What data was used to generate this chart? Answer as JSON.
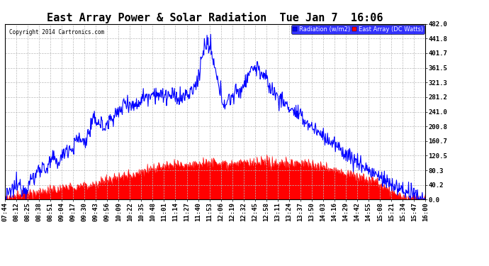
{
  "title": "East Array Power & Solar Radiation  Tue Jan 7  16:06",
  "copyright": "Copyright 2014 Cartronics.com",
  "legend_radiation": "Radiation (w/m2)",
  "legend_east_array": "East Array (DC Watts)",
  "ymax": 482.0,
  "ymin": 0.0,
  "yticks": [
    0.0,
    40.2,
    80.3,
    120.5,
    160.7,
    200.8,
    241.0,
    281.2,
    321.3,
    361.5,
    401.7,
    441.8,
    482.0
  ],
  "background_color": "#ffffff",
  "plot_bg_color": "#ffffff",
  "radiation_color": "#0000ff",
  "east_array_color": "#ff0000",
  "grid_color": "#bbbbbb",
  "title_fontsize": 11,
  "tick_label_fontsize": 6.5,
  "x_tick_labels": [
    "07:44",
    "08:12",
    "08:25",
    "08:38",
    "08:51",
    "09:04",
    "09:17",
    "09:30",
    "09:43",
    "09:56",
    "10:09",
    "10:22",
    "10:35",
    "10:48",
    "11:01",
    "11:14",
    "11:27",
    "11:40",
    "11:53",
    "12:06",
    "12:19",
    "12:32",
    "12:45",
    "12:58",
    "13:11",
    "13:24",
    "13:37",
    "13:50",
    "14:03",
    "14:16",
    "14:29",
    "14:42",
    "14:55",
    "15:08",
    "15:21",
    "15:34",
    "15:47",
    "16:00"
  ]
}
